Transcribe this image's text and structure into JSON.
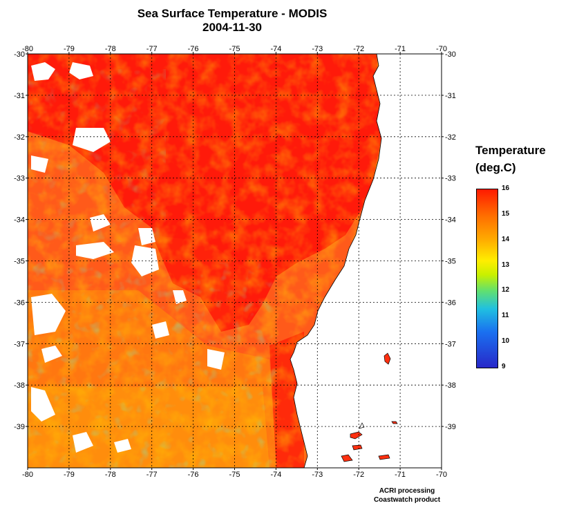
{
  "title": "Sea Surface Temperature - MODIS",
  "date": "2004-11-30",
  "legend": {
    "title_line1": "Temperature",
    "title_line2": "(deg.C)",
    "ticks": [
      "16",
      "15",
      "14",
      "13",
      "12",
      "11",
      "10",
      "9"
    ],
    "colors": [
      "#2828c8",
      "#1a70f0",
      "#20c0e0",
      "#60e070",
      "#ffee00",
      "#ffaa00",
      "#ff6a00",
      "#ff1a00"
    ]
  },
  "credit_line1": "ACRI processing",
  "credit_line2": "Coastwatch product",
  "chart_data": {
    "type": "heatmap",
    "variable": "Sea Surface Temperature",
    "units": "deg.C",
    "x_ticks": [
      "-80",
      "-79",
      "-78",
      "-77",
      "-76",
      "-75",
      "-74",
      "-73",
      "-72",
      "-71",
      "-70"
    ],
    "y_ticks": [
      "-30",
      "-31",
      "-32",
      "-33",
      "-34",
      "-35",
      "-36",
      "-37",
      "-38",
      "-39"
    ],
    "xlim": [
      -80,
      -70
    ],
    "ylim": [
      -40,
      -30
    ],
    "color_range": [
      9,
      16
    ],
    "grid": true,
    "land_color": "#ffffff",
    "cloud_color": "#ffffff"
  }
}
